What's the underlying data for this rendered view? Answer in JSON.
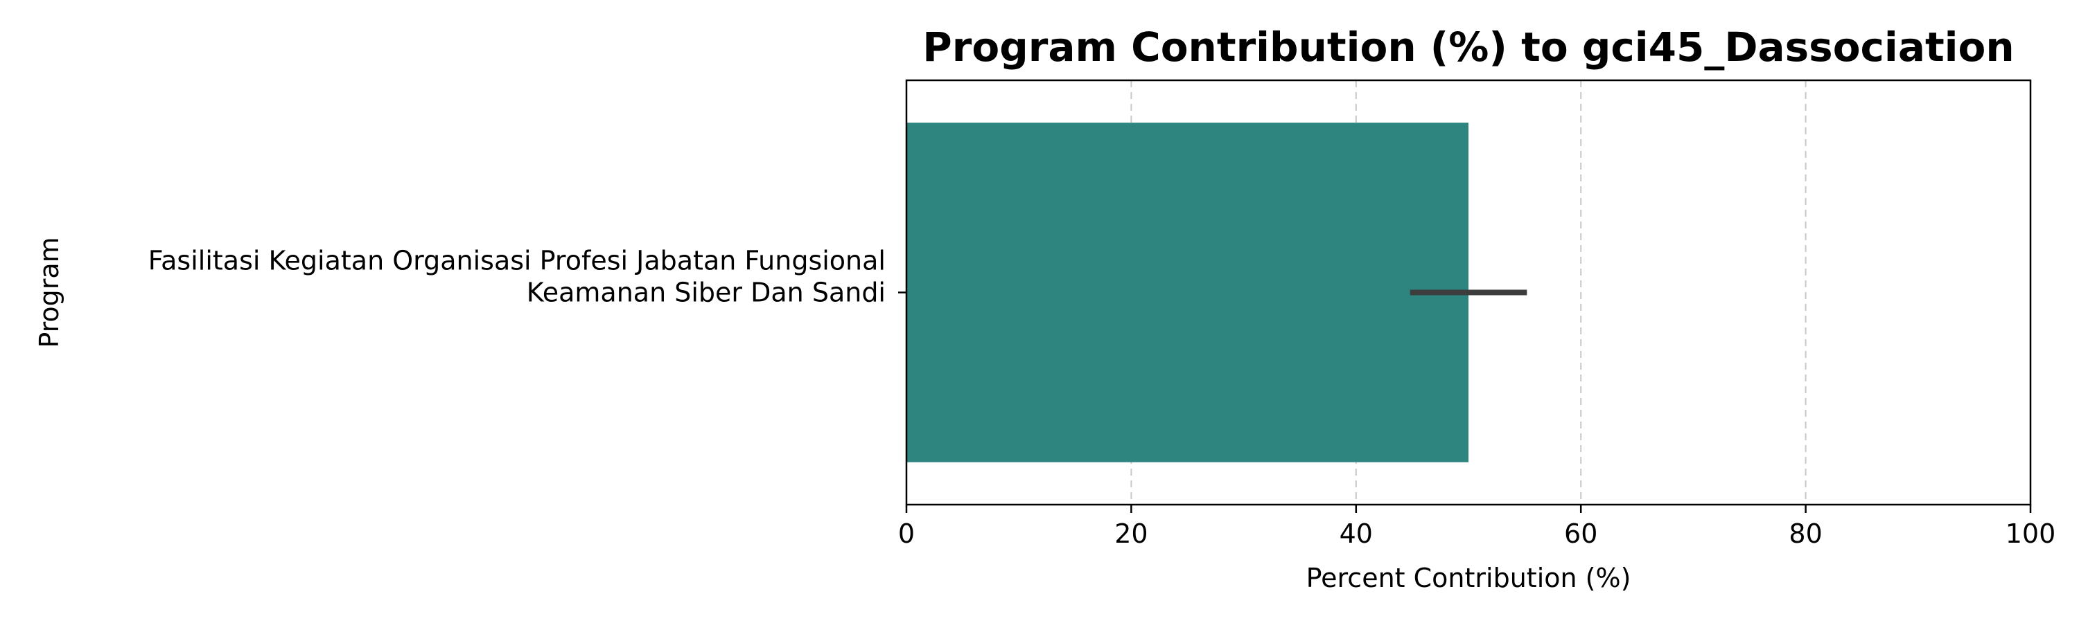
{
  "chart_data": {
    "type": "bar",
    "orientation": "horizontal",
    "title": "Program Contribution (%) to gci45_Dassociation",
    "xlabel": "Percent Contribution (%)",
    "ylabel": "Program",
    "xlim": [
      0,
      100
    ],
    "xticks": [
      "0",
      "20",
      "40",
      "60",
      "80",
      "100"
    ],
    "grid": "x-dashed",
    "categories": [
      {
        "lines": [
          "Fasilitasi Kegiatan Organisasi Profesi Jabatan Fungsional",
          "Keamanan Siber Dan Sandi"
        ]
      }
    ],
    "values": [
      50
    ],
    "error_low": [
      44.8
    ],
    "error_high": [
      55.2
    ],
    "colors": {
      "bar": "#2e847e",
      "error_bar": "#3d3d3d",
      "grid": "#c8c8c8",
      "axes": "#000000"
    }
  }
}
